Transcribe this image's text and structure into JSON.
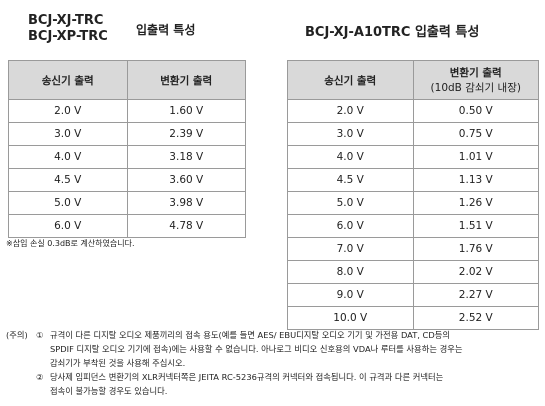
{
  "left": {
    "title_lines": [
      "BCJ-XJ-TRC",
      "BCJ-XP-TRC"
    ],
    "title_suffix": "입출력 특성",
    "header": [
      "송신기 출력",
      "변환기 출력"
    ],
    "rows": [
      [
        "2.0 V",
        "1.60 V"
      ],
      [
        "3.0 V",
        "2.39 V"
      ],
      [
        "4.0 V",
        "3.18 V"
      ],
      [
        "4.5 V",
        "3.60 V"
      ],
      [
        "5.0 V",
        "3.98 V"
      ],
      [
        "6.0 V",
        "4.78 V"
      ]
    ],
    "note": "※삽입 손실 0.3dB로 계산하였습니다."
  },
  "right": {
    "title": "BCJ-XJ-A10TRC 입출력 특성",
    "header": [
      "송신기 출력",
      "변환기 출력",
      "(10dB 감쇠기 내장)"
    ],
    "rows": [
      [
        "2.0 V",
        "0.50 V"
      ],
      [
        "3.0 V",
        "0.75 V"
      ],
      [
        "4.0 V",
        "1.01 V"
      ],
      [
        "4.5 V",
        "1.13 V"
      ],
      [
        "5.0 V",
        "1.26 V"
      ],
      [
        "6.0 V",
        "1.51 V"
      ],
      [
        "7.0 V",
        "1.76 V"
      ],
      [
        "8.0 V",
        "2.02 V"
      ],
      [
        "9.0 V",
        "2.27 V"
      ],
      [
        "10.0 V",
        "2.52 V"
      ]
    ]
  },
  "caution": {
    "label": "(주의)",
    "items": [
      {
        "marker": "①",
        "lines": [
          "규격이 다른 디지탈 오디오 제품끼리의 접속 용도(예를 들면 AES/ EBU디지탈 오디오 기기 및 가전용 DAT, CD등의",
          "SPDIF 디지탈 오디오 기기에 접속)에는 사용할 수 없습니다. 아나로그 비디오 신호용의 VDA나 루터를 사용하는 경우는",
          "감쇠기가 부착된 것을 사용해 주십시오."
        ]
      },
      {
        "marker": "②",
        "lines": [
          "당사제 임피던스 변환기의 XLR커넥터쪽은 JEITA RC-5236규격의 커넥터와 접속됩니다. 이 규격과 다른 커넥터는",
          "접속이 불가능할 경우도 있습니다."
        ]
      }
    ]
  }
}
